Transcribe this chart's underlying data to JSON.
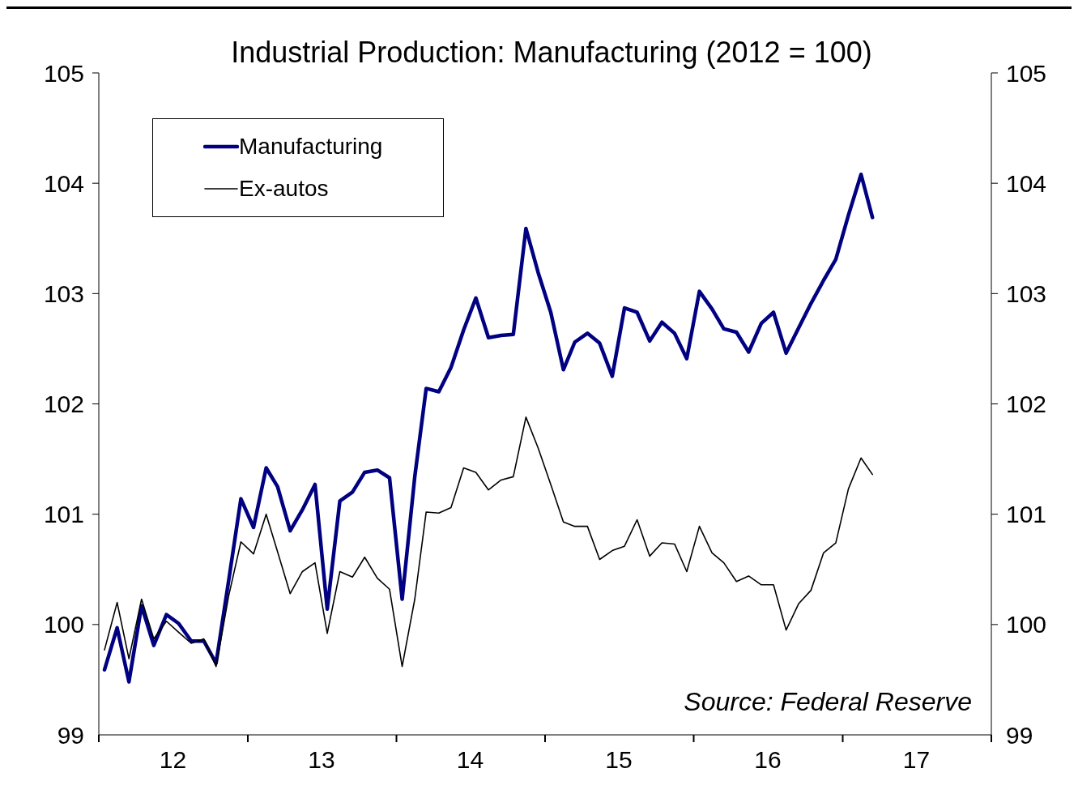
{
  "chart_data": {
    "type": "line",
    "title": "Industrial Production: Manufacturing (2012 = 100)",
    "x": [
      "2012-01-15",
      "2012-02-15",
      "2012-03-15",
      "2012-04-15",
      "2012-05-15",
      "2012-06-15",
      "2012-07-15",
      "2012-08-15",
      "2012-09-15",
      "2012-10-15",
      "2012-11-15",
      "2012-12-15",
      "2013-01-15",
      "2013-02-15",
      "2013-03-15",
      "2013-04-15",
      "2013-05-15",
      "2013-06-15",
      "2013-07-15",
      "2013-08-15",
      "2013-09-15",
      "2013-10-15",
      "2013-11-15",
      "2013-12-15",
      "2014-01-15",
      "2014-02-15",
      "2014-03-15",
      "2014-04-15",
      "2014-05-15",
      "2014-06-15",
      "2014-07-15",
      "2014-08-15",
      "2014-09-15",
      "2014-10-15",
      "2014-11-15",
      "2014-12-15",
      "2015-01-15",
      "2015-02-15",
      "2015-03-15",
      "2015-04-15",
      "2015-05-15",
      "2015-06-15",
      "2015-07-15",
      "2015-08-15",
      "2015-09-15",
      "2015-10-15",
      "2015-11-15",
      "2015-12-15",
      "2016-01-15",
      "2016-02-15",
      "2016-03-15",
      "2016-04-15",
      "2016-05-15",
      "2016-06-15",
      "2016-07-15",
      "2016-08-15",
      "2016-09-15",
      "2016-10-15",
      "2016-11-15",
      "2016-12-15",
      "2017-01-15",
      "2017-02-15",
      "2017-03-15"
    ],
    "series": [
      {
        "name": "Manufacturing",
        "color": "#000080",
        "values": [
          99.59,
          99.97,
          99.48,
          100.17,
          99.81,
          100.09,
          100.01,
          99.85,
          99.85,
          99.65,
          100.4,
          101.14,
          100.88,
          101.42,
          101.25,
          100.85,
          101.04,
          101.27,
          100.14,
          101.12,
          101.2,
          101.38,
          101.4,
          101.33,
          100.23,
          101.34,
          102.14,
          102.11,
          102.33,
          102.67,
          102.96,
          102.6,
          102.62,
          102.63,
          103.59,
          103.19,
          102.83,
          102.31,
          102.56,
          102.64,
          102.55,
          102.25,
          102.87,
          102.83,
          102.57,
          102.74,
          102.64,
          102.41,
          103.02,
          102.86,
          102.68,
          102.65,
          102.47,
          102.73,
          102.83,
          102.46,
          102.69,
          102.91,
          103.12,
          103.31,
          103.71,
          104.08,
          103.69
        ]
      },
      {
        "name": "Ex-autos",
        "color": "#000000",
        "values": [
          99.77,
          100.2,
          99.69,
          100.23,
          99.87,
          100.03,
          99.93,
          99.83,
          99.87,
          99.62,
          100.26,
          100.75,
          100.64,
          101.0,
          100.66,
          100.28,
          100.48,
          100.56,
          99.92,
          100.48,
          100.43,
          100.61,
          100.42,
          100.32,
          99.62,
          100.23,
          101.02,
          101.01,
          101.06,
          101.42,
          101.38,
          101.22,
          101.31,
          101.34,
          101.88,
          101.6,
          101.27,
          100.93,
          100.89,
          100.89,
          100.59,
          100.67,
          100.71,
          100.95,
          100.62,
          100.74,
          100.73,
          100.48,
          100.89,
          100.65,
          100.56,
          100.39,
          100.44,
          100.36,
          100.36,
          99.95,
          100.19,
          100.31,
          100.65,
          100.74,
          101.23,
          101.51,
          101.36
        ]
      }
    ],
    "xlim": [
      "2012-01-01",
      "2018-01-01"
    ],
    "xticks": [
      {
        "value": "2012-01-01",
        "label": null
      },
      {
        "value": "2012-07-01",
        "label": "12"
      },
      {
        "value": "2013-01-01",
        "label": null
      },
      {
        "value": "2013-07-01",
        "label": "13"
      },
      {
        "value": "2014-01-01",
        "label": null
      },
      {
        "value": "2014-07-01",
        "label": "14"
      },
      {
        "value": "2015-01-01",
        "label": null
      },
      {
        "value": "2015-07-01",
        "label": "15"
      },
      {
        "value": "2016-01-01",
        "label": null
      },
      {
        "value": "2016-07-01",
        "label": "16"
      },
      {
        "value": "2017-01-01",
        "label": null
      },
      {
        "value": "2017-07-01",
        "label": "17"
      },
      {
        "value": "2018-01-01",
        "label": null
      }
    ],
    "ylim": [
      99,
      105
    ],
    "yticks": [
      99,
      100,
      101,
      102,
      103,
      104,
      105
    ],
    "y2lim": [
      99,
      105
    ],
    "y2ticks": [
      99,
      100,
      101,
      102,
      103,
      104,
      105
    ],
    "legend": "top left",
    "grid": false,
    "marker": "none",
    "line_style": "solid",
    "annotations": [
      "Source: Federal Reserve"
    ]
  }
}
